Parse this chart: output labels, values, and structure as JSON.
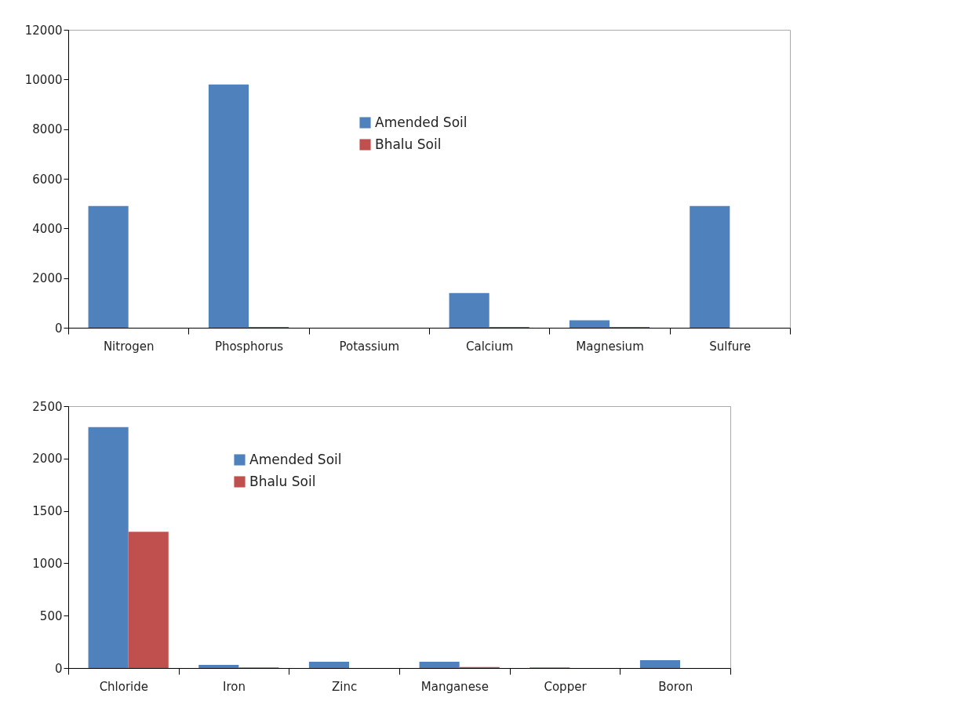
{
  "chart_data": [
    {
      "type": "bar",
      "categories": [
        "Nitrogen",
        "Phosphorus",
        "Potassium",
        "Calcium",
        "Magnesium",
        "Sulfure"
      ],
      "series": [
        {
          "name": "Amended Soil",
          "color": "#4f81bd",
          "values": [
            4900,
            9800,
            0,
            1400,
            300,
            4900
          ]
        },
        {
          "name": "Bhalu Soil",
          "color": "#c0504d",
          "values": [
            0,
            30,
            0,
            30,
            30,
            0
          ]
        }
      ],
      "ylim": [
        0,
        12000
      ],
      "yticks": [
        0,
        2000,
        4000,
        6000,
        8000,
        10000,
        12000
      ],
      "grid": false,
      "legend": "top"
    },
    {
      "type": "bar",
      "categories": [
        "Chloride",
        "Iron",
        "Zinc",
        "Manganese",
        "Copper",
        "Boron"
      ],
      "series": [
        {
          "name": "Amended Soil",
          "color": "#4f81bd",
          "values": [
            2300,
            30,
            60,
            60,
            5,
            75
          ]
        },
        {
          "name": "Bhalu Soil",
          "color": "#c0504d",
          "values": [
            1300,
            5,
            0,
            10,
            0,
            0
          ]
        }
      ],
      "ylim": [
        0,
        2500
      ],
      "yticks": [
        0,
        500,
        1000,
        1500,
        2000,
        2500
      ],
      "grid": false,
      "legend": "top"
    }
  ]
}
